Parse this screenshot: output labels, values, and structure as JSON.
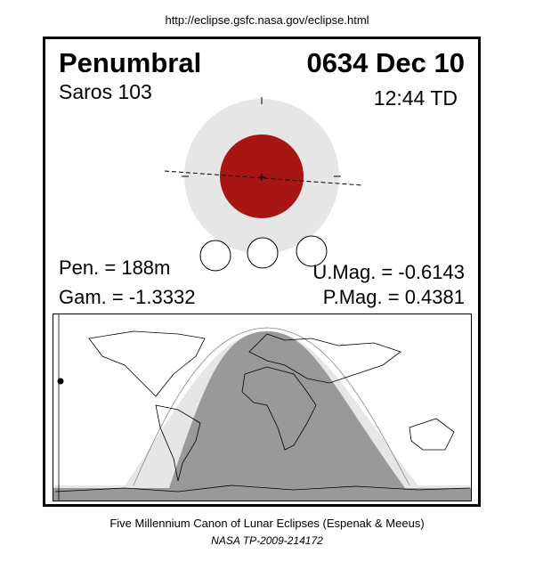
{
  "header": {
    "url": "http://eclipse.gsfc.nasa.gov/eclipse.html"
  },
  "eclipse": {
    "type": "Penumbral",
    "date": "0634 Dec 10",
    "saros": "Saros 103",
    "time": "12:44 TD",
    "duration": "Pen. = 188m",
    "gamma": "Gam. = -1.3332",
    "umbral_magnitude": "U.Mag. = -0.6143",
    "penumbral_magnitude": "P.Mag. = 0.4381"
  },
  "footer": {
    "line1": "Five Millennium Canon of Lunar Eclipses (Espenak & Meeus)",
    "line2": "NASA TP-2009-214172"
  }
}
